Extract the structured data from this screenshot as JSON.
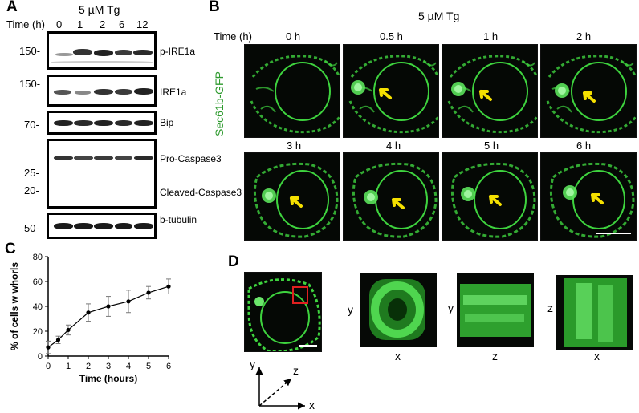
{
  "panels": {
    "a": "A",
    "b": "B",
    "c": "C",
    "d": "D"
  },
  "panel_a": {
    "treatment": "5 µM Tg",
    "time_label": "Time (h)",
    "times": [
      "0",
      "1",
      "2",
      "6",
      "12"
    ],
    "markers": [
      "150-",
      "150-",
      "70-",
      "25-",
      "20-",
      "50-"
    ],
    "blots": [
      "p-IRE1a",
      "IRE1a",
      "Bip",
      "Pro-Caspase3",
      "Cleaved-Caspase3",
      "b-tubulin"
    ]
  },
  "panel_b": {
    "treatment": "5 µM Tg",
    "time_label": "Time (h)",
    "channel": "Sec61b-GFP",
    "row1": [
      "0 h",
      "0.5 h",
      "1 h",
      "2 h"
    ],
    "row2": [
      "3 h",
      "4 h",
      "5 h",
      "6 h"
    ],
    "arrow_color": "#f5e000",
    "gfp_color": "#3ed33e"
  },
  "chart_data": {
    "type": "line",
    "xlabel": "Time (hours)",
    "ylabel": "% of cells w whorls",
    "x": [
      0,
      0.5,
      1,
      2,
      3,
      4,
      5,
      6
    ],
    "series": [
      {
        "values": [
          7,
          13,
          21,
          35,
          40,
          44,
          51,
          56
        ],
        "errors": [
          5,
          3,
          4,
          7,
          8,
          9,
          5,
          6
        ]
      }
    ],
    "xticks": [
      "0",
      "1",
      "2",
      "3",
      "4",
      "5",
      "6"
    ],
    "yticks": [
      "0",
      "20",
      "40",
      "60",
      "80"
    ],
    "xlim": [
      0,
      6
    ],
    "ylim": [
      0,
      80
    ],
    "grid": false
  },
  "panel_d": {
    "axes_labels": [
      "y",
      "x",
      "y",
      "z",
      "z",
      "x"
    ],
    "axis_x": "x",
    "axis_y": "y",
    "axis_z": "z",
    "roi_color": "#e02020"
  }
}
